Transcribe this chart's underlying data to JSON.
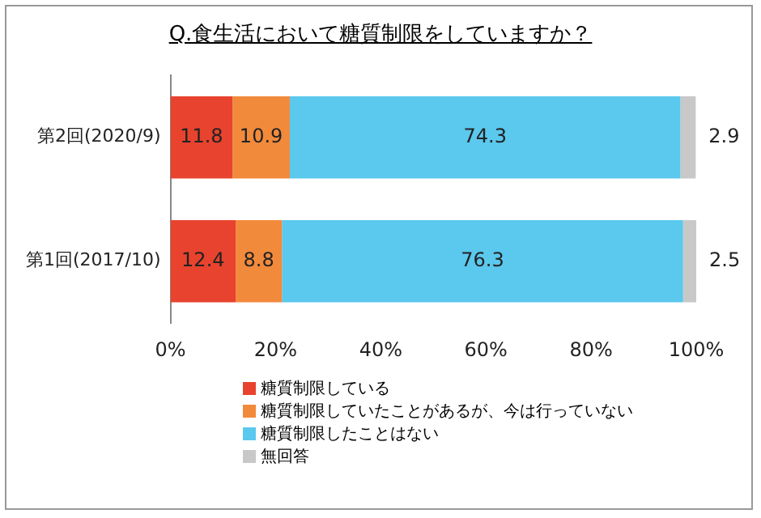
{
  "chart_data": {
    "type": "bar",
    "orientation": "horizontal",
    "stacked": true,
    "title": "Q.食生活において糖質制限をしていますか？",
    "categories": [
      "第2回(2020/9)",
      "第1回(2017/10)"
    ],
    "series": [
      {
        "name": "糖質制限している",
        "color": "#e8432e",
        "values": [
          11.8,
          12.4
        ]
      },
      {
        "name": "糖質制限していたことがあるが、今は行っていない",
        "color": "#f28a3c",
        "values": [
          10.9,
          8.8
        ]
      },
      {
        "name": "糖質制限したことはない",
        "color": "#5bc8ee",
        "values": [
          74.3,
          76.3
        ]
      },
      {
        "name": "無回答",
        "color": "#c8c8c8",
        "values": [
          2.9,
          2.5
        ]
      }
    ],
    "xlim": [
      0,
      100
    ],
    "xticks": [
      {
        "value": 0,
        "label": "0%"
      },
      {
        "value": 20,
        "label": "20%"
      },
      {
        "value": 40,
        "label": "40%"
      },
      {
        "value": 60,
        "label": "60%"
      },
      {
        "value": 80,
        "label": "80%"
      },
      {
        "value": 100,
        "label": "100%"
      }
    ],
    "data_labels": true,
    "legend": "bottom",
    "grid": false
  }
}
